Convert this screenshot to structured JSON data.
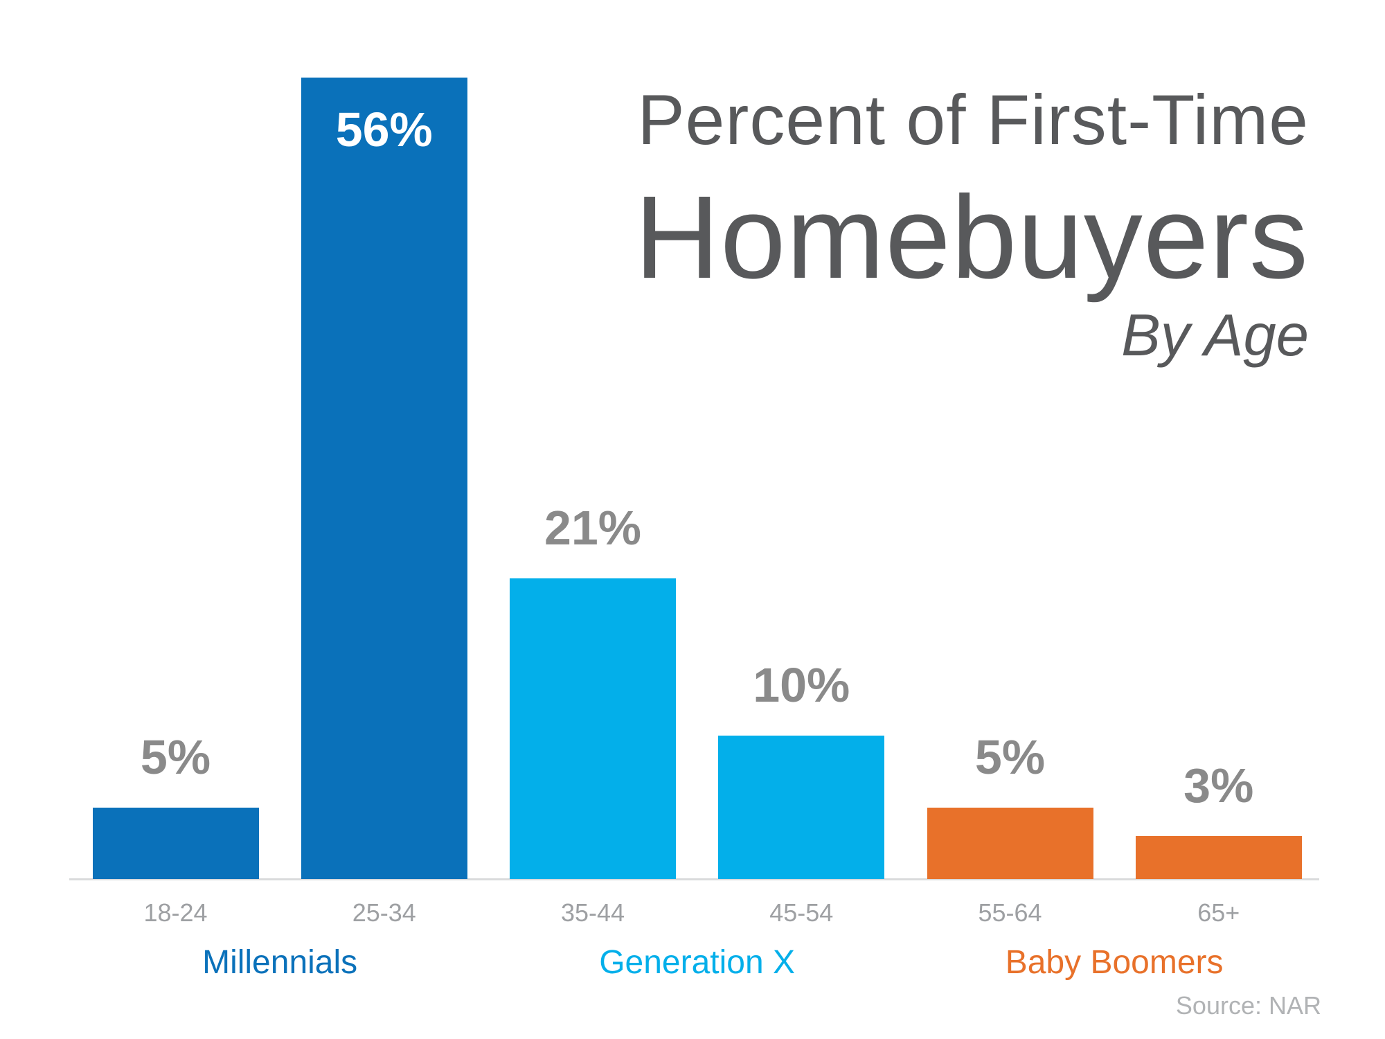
{
  "chart_data": {
    "type": "bar",
    "title_line1": "Percent of First-Time",
    "title_line2": "Homebuyers",
    "subtitle": "By Age",
    "source": "Source: NAR",
    "categories": [
      "18-24",
      "25-34",
      "35-44",
      "45-54",
      "55-64",
      "65+"
    ],
    "values": [
      5,
      56,
      21,
      10,
      5,
      3
    ],
    "value_labels": [
      "5%",
      "56%",
      "21%",
      "10%",
      "5%",
      "3%"
    ],
    "label_inside": [
      false,
      true,
      false,
      false,
      false,
      false
    ],
    "groups": [
      {
        "label": "Millennials",
        "color": "#0A71BA",
        "bar_indexes": [
          0,
          1
        ]
      },
      {
        "label": "Generation X",
        "color": "#03AFEA",
        "bar_indexes": [
          2,
          3
        ]
      },
      {
        "label": "Baby Boomers",
        "color": "#E8712A",
        "bar_indexes": [
          4,
          5
        ]
      }
    ],
    "ylim": [
      0,
      60
    ],
    "grid": false,
    "legend_position": "below-axis",
    "colors": {
      "value_label_outside": "#8A8A8A",
      "value_label_inside": "#FFFFFF",
      "axis_label": "#9EA0A3",
      "title": "#58595B",
      "source": "#B1B3B5",
      "baseline": "#DADBDC"
    }
  }
}
